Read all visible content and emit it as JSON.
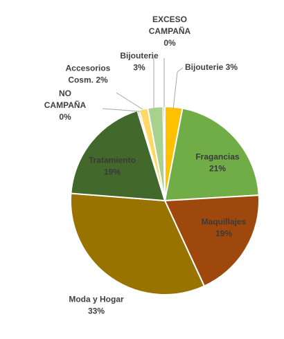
{
  "chart_data": {
    "type": "pie",
    "slices": [
      {
        "label": "Bijouterie 3%",
        "lines": [
          "Bijouterie 3%"
        ],
        "value": 3,
        "color": "#FFC000"
      },
      {
        "label": "Fragancias 21%",
        "lines": [
          "Fragancias",
          "21%"
        ],
        "value": 21,
        "color": "#70AD47"
      },
      {
        "label": "Maquillajes 19%",
        "lines": [
          "Maquillajes",
          "19%"
        ],
        "value": 19,
        "color": "#9E480E"
      },
      {
        "label": "Moda y Hogar 33%",
        "lines": [
          "Moda y Hogar",
          "33%"
        ],
        "value": 33,
        "color": "#997300"
      },
      {
        "label": "Tratamiento 19%",
        "lines": [
          "Tratamiento",
          "19%"
        ],
        "value": 19,
        "color": "#43682B"
      },
      {
        "label": "NO CAMPAÑA 0%",
        "lines": [
          "NO",
          "CAMPAÑA",
          "0%"
        ],
        "value": 0.3,
        "color": "#5B9BD5"
      },
      {
        "label": "Accesorios Cosm. 2%",
        "lines": [
          "Accesorios",
          "Cosm. 2%"
        ],
        "value": 1.5,
        "color": "#FFD966"
      },
      {
        "label": "Bijouterie 3%",
        "lines": [
          "Bijouterie",
          "3%"
        ],
        "value": 2.6,
        "color": "#A9D18E"
      },
      {
        "label": "EXCESO CAMPAÑA 0%",
        "lines": [
          "EXCESO",
          "CAMPAÑA",
          "0%"
        ],
        "value": 0.3,
        "color": "#A5A5A5"
      }
    ]
  }
}
